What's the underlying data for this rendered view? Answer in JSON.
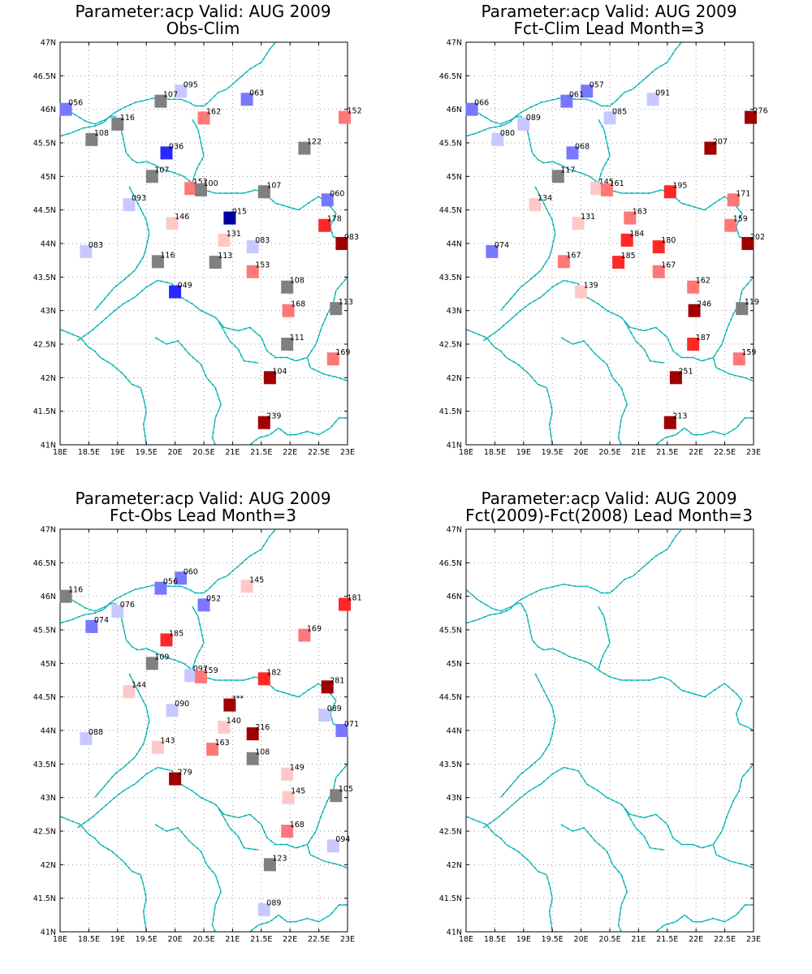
{
  "colors": {
    "coast": "#00b2b2",
    "frame": "#000000",
    "grid": "#999999",
    "gray": "#808080",
    "blue_1": "#c8c8ff",
    "blue_2": "#7878ff",
    "blue_3": "#2828ff",
    "blue_4": "#0000a0",
    "red_1": "#ffc8c8",
    "red_2": "#ff7878",
    "red_3": "#ff2828",
    "red_4": "#a00000"
  },
  "map": {
    "lon_range": [
      18,
      23
    ],
    "lat_range": [
      41,
      47
    ],
    "x_ticks": [
      "18E",
      "18.5E",
      "19E",
      "19.5E",
      "20E",
      "20.5E",
      "21E",
      "21.5E",
      "22E",
      "22.5E",
      "23E"
    ],
    "y_ticks": [
      "41N",
      "41.5N",
      "42N",
      "42.5N",
      "43N",
      "43.5N",
      "44N",
      "44.5N",
      "45N",
      "45.5N",
      "46N",
      "46.5N",
      "47N"
    ],
    "grid": true
  },
  "panels": [
    {
      "title": "Parameter:acp Valid: AUG 2009",
      "subtitle": "Obs-Clim",
      "stations": [
        {
          "lon": 18.1,
          "lat": 46.0,
          "label": "056",
          "c": "blue_2"
        },
        {
          "lon": 20.1,
          "lat": 46.27,
          "label": "095",
          "c": "blue_1"
        },
        {
          "lon": 19.75,
          "lat": 46.12,
          "label": "107",
          "c": "gray"
        },
        {
          "lon": 20.5,
          "lat": 45.87,
          "label": "162",
          "c": "red_2"
        },
        {
          "lon": 21.25,
          "lat": 46.15,
          "label": "063",
          "c": "blue_2"
        },
        {
          "lon": 22.95,
          "lat": 45.88,
          "label": "152",
          "c": "red_2"
        },
        {
          "lon": 19.0,
          "lat": 45.78,
          "label": "116",
          "c": "gray"
        },
        {
          "lon": 18.55,
          "lat": 45.55,
          "label": "108",
          "c": "gray"
        },
        {
          "lon": 19.85,
          "lat": 45.35,
          "label": "036",
          "c": "blue_3"
        },
        {
          "lon": 22.25,
          "lat": 45.42,
          "label": "122",
          "c": "gray"
        },
        {
          "lon": 19.6,
          "lat": 45.0,
          "label": "107",
          "c": "gray"
        },
        {
          "lon": 20.27,
          "lat": 44.82,
          "label": "152",
          "c": "red_2"
        },
        {
          "lon": 20.45,
          "lat": 44.8,
          "label": "100",
          "c": "gray"
        },
        {
          "lon": 21.55,
          "lat": 44.77,
          "label": "107",
          "c": "gray"
        },
        {
          "lon": 22.65,
          "lat": 44.65,
          "label": "060",
          "c": "blue_2"
        },
        {
          "lon": 19.2,
          "lat": 44.58,
          "label": "093",
          "c": "blue_1"
        },
        {
          "lon": 19.95,
          "lat": 44.3,
          "label": "146",
          "c": "red_1"
        },
        {
          "lon": 20.95,
          "lat": 44.38,
          "label": "015",
          "c": "blue_4"
        },
        {
          "lon": 22.6,
          "lat": 44.27,
          "label": "178",
          "c": "red_3"
        },
        {
          "lon": 20.85,
          "lat": 44.05,
          "label": "131",
          "c": "red_1"
        },
        {
          "lon": 21.35,
          "lat": 43.95,
          "label": "083",
          "c": "blue_1"
        },
        {
          "lon": 22.9,
          "lat": 44.0,
          "label": "083",
          "c": "red_4"
        },
        {
          "lon": 18.45,
          "lat": 43.88,
          "label": "083",
          "c": "blue_1"
        },
        {
          "lon": 19.7,
          "lat": 43.73,
          "label": "116",
          "c": "gray"
        },
        {
          "lon": 20.7,
          "lat": 43.72,
          "label": "113",
          "c": "gray"
        },
        {
          "lon": 21.35,
          "lat": 43.58,
          "label": "153",
          "c": "red_2"
        },
        {
          "lon": 21.95,
          "lat": 43.35,
          "label": "108",
          "c": "gray"
        },
        {
          "lon": 20.0,
          "lat": 43.28,
          "label": "049",
          "c": "blue_3"
        },
        {
          "lon": 21.97,
          "lat": 43.0,
          "label": "168",
          "c": "red_2"
        },
        {
          "lon": 22.8,
          "lat": 43.03,
          "label": "113",
          "c": "gray"
        },
        {
          "lon": 21.95,
          "lat": 42.5,
          "label": "111",
          "c": "gray"
        },
        {
          "lon": 22.75,
          "lat": 42.28,
          "label": "169",
          "c": "red_2"
        },
        {
          "lon": 21.65,
          "lat": 42.0,
          "label": "104",
          "c": "red_4"
        },
        {
          "lon": 21.55,
          "lat": 41.33,
          "label": "239",
          "c": "red_4"
        }
      ]
    },
    {
      "title": "Parameter:acp Valid: AUG 2009",
      "subtitle": "Fct-Clim Lead Month=3",
      "stations": [
        {
          "lon": 18.1,
          "lat": 46.0,
          "label": "066",
          "c": "blue_2"
        },
        {
          "lon": 20.1,
          "lat": 46.27,
          "label": "057",
          "c": "blue_2"
        },
        {
          "lon": 19.75,
          "lat": 46.12,
          "label": "061",
          "c": "blue_2"
        },
        {
          "lon": 20.5,
          "lat": 45.87,
          "label": "085",
          "c": "blue_1"
        },
        {
          "lon": 21.25,
          "lat": 46.15,
          "label": "091",
          "c": "blue_1"
        },
        {
          "lon": 22.95,
          "lat": 45.88,
          "label": "276",
          "c": "red_4"
        },
        {
          "lon": 19.0,
          "lat": 45.78,
          "label": "089",
          "c": "blue_1"
        },
        {
          "lon": 18.55,
          "lat": 45.55,
          "label": "080",
          "c": "blue_1"
        },
        {
          "lon": 19.85,
          "lat": 45.35,
          "label": "068",
          "c": "blue_2"
        },
        {
          "lon": 22.25,
          "lat": 45.42,
          "label": "207",
          "c": "red_4"
        },
        {
          "lon": 19.6,
          "lat": 45.0,
          "label": "117",
          "c": "gray"
        },
        {
          "lon": 20.27,
          "lat": 44.82,
          "label": "145",
          "c": "red_1"
        },
        {
          "lon": 20.45,
          "lat": 44.8,
          "label": "161",
          "c": "red_2"
        },
        {
          "lon": 21.55,
          "lat": 44.77,
          "label": "195",
          "c": "red_3"
        },
        {
          "lon": 22.65,
          "lat": 44.65,
          "label": "171",
          "c": "red_2"
        },
        {
          "lon": 19.2,
          "lat": 44.58,
          "label": "134",
          "c": "red_1"
        },
        {
          "lon": 19.95,
          "lat": 44.3,
          "label": "131",
          "c": "red_1"
        },
        {
          "lon": 20.85,
          "lat": 44.38,
          "label": "163",
          "c": "red_2"
        },
        {
          "lon": 22.6,
          "lat": 44.27,
          "label": "159",
          "c": "red_2"
        },
        {
          "lon": 20.8,
          "lat": 44.05,
          "label": "184",
          "c": "red_3"
        },
        {
          "lon": 21.35,
          "lat": 43.95,
          "label": "180",
          "c": "red_3"
        },
        {
          "lon": 22.9,
          "lat": 44.0,
          "label": "202",
          "c": "red_4"
        },
        {
          "lon": 18.45,
          "lat": 43.88,
          "label": "074",
          "c": "blue_2"
        },
        {
          "lon": 19.7,
          "lat": 43.73,
          "label": "167",
          "c": "red_2"
        },
        {
          "lon": 20.65,
          "lat": 43.72,
          "label": "185",
          "c": "red_3"
        },
        {
          "lon": 21.35,
          "lat": 43.58,
          "label": "167",
          "c": "red_2"
        },
        {
          "lon": 21.95,
          "lat": 43.35,
          "label": "162",
          "c": "red_2"
        },
        {
          "lon": 20.0,
          "lat": 43.28,
          "label": "139",
          "c": "red_1"
        },
        {
          "lon": 21.97,
          "lat": 43.0,
          "label": "246",
          "c": "red_4"
        },
        {
          "lon": 22.8,
          "lat": 43.03,
          "label": "119",
          "c": "gray"
        },
        {
          "lon": 21.95,
          "lat": 42.5,
          "label": "187",
          "c": "red_3"
        },
        {
          "lon": 22.75,
          "lat": 42.28,
          "label": "159",
          "c": "red_2"
        },
        {
          "lon": 21.65,
          "lat": 42.0,
          "label": "251",
          "c": "red_4"
        },
        {
          "lon": 21.55,
          "lat": 41.33,
          "label": "213",
          "c": "red_4"
        }
      ]
    },
    {
      "title": "Parameter:acp Valid: AUG 2009",
      "subtitle": "Fct-Obs Lead Month=3",
      "stations": [
        {
          "lon": 18.1,
          "lat": 46.0,
          "label": "116",
          "c": "gray"
        },
        {
          "lon": 20.1,
          "lat": 46.27,
          "label": "060",
          "c": "blue_2"
        },
        {
          "lon": 19.75,
          "lat": 46.12,
          "label": "056",
          "c": "blue_2"
        },
        {
          "lon": 20.5,
          "lat": 45.87,
          "label": "052",
          "c": "blue_2"
        },
        {
          "lon": 21.25,
          "lat": 46.15,
          "label": "145",
          "c": "red_1"
        },
        {
          "lon": 22.95,
          "lat": 45.88,
          "label": "181",
          "c": "red_3"
        },
        {
          "lon": 19.0,
          "lat": 45.78,
          "label": "076",
          "c": "blue_1"
        },
        {
          "lon": 18.55,
          "lat": 45.55,
          "label": "074",
          "c": "blue_2"
        },
        {
          "lon": 19.85,
          "lat": 45.35,
          "label": "185",
          "c": "red_3"
        },
        {
          "lon": 22.25,
          "lat": 45.42,
          "label": "169",
          "c": "red_2"
        },
        {
          "lon": 19.6,
          "lat": 45.0,
          "label": "109",
          "c": "gray"
        },
        {
          "lon": 20.27,
          "lat": 44.82,
          "label": "097",
          "c": "blue_1"
        },
        {
          "lon": 20.45,
          "lat": 44.8,
          "label": "159",
          "c": "red_2"
        },
        {
          "lon": 21.55,
          "lat": 44.77,
          "label": "182",
          "c": "red_3"
        },
        {
          "lon": 22.65,
          "lat": 44.65,
          "label": "281",
          "c": "red_4"
        },
        {
          "lon": 19.2,
          "lat": 44.58,
          "label": "144",
          "c": "red_1"
        },
        {
          "lon": 19.95,
          "lat": 44.3,
          "label": "090",
          "c": "blue_1"
        },
        {
          "lon": 20.95,
          "lat": 44.38,
          "label": "***",
          "c": "red_4"
        },
        {
          "lon": 22.6,
          "lat": 44.23,
          "label": "089",
          "c": "blue_1"
        },
        {
          "lon": 20.85,
          "lat": 44.05,
          "label": "140",
          "c": "red_1"
        },
        {
          "lon": 21.35,
          "lat": 43.95,
          "label": "216",
          "c": "red_4"
        },
        {
          "lon": 22.9,
          "lat": 44.0,
          "label": "071",
          "c": "blue_2"
        },
        {
          "lon": 18.45,
          "lat": 43.88,
          "label": "088",
          "c": "blue_1"
        },
        {
          "lon": 19.7,
          "lat": 43.75,
          "label": "143",
          "c": "red_1"
        },
        {
          "lon": 20.65,
          "lat": 43.72,
          "label": "163",
          "c": "red_2"
        },
        {
          "lon": 21.35,
          "lat": 43.58,
          "label": "108",
          "c": "gray"
        },
        {
          "lon": 21.95,
          "lat": 43.35,
          "label": "149",
          "c": "red_1"
        },
        {
          "lon": 20.0,
          "lat": 43.28,
          "label": "279",
          "c": "red_4"
        },
        {
          "lon": 21.97,
          "lat": 43.0,
          "label": "145",
          "c": "red_1"
        },
        {
          "lon": 22.8,
          "lat": 43.03,
          "label": "105",
          "c": "gray"
        },
        {
          "lon": 21.95,
          "lat": 42.5,
          "label": "168",
          "c": "red_2"
        },
        {
          "lon": 22.75,
          "lat": 42.28,
          "label": "094",
          "c": "blue_1"
        },
        {
          "lon": 21.65,
          "lat": 42.0,
          "label": "123",
          "c": "gray"
        },
        {
          "lon": 21.55,
          "lat": 41.33,
          "label": "089",
          "c": "blue_1"
        }
      ]
    },
    {
      "title": "Parameter:acp Valid: AUG 2009",
      "subtitle": "Fct(2009)-Fct(2008) Lead Month=3",
      "stations": []
    }
  ]
}
